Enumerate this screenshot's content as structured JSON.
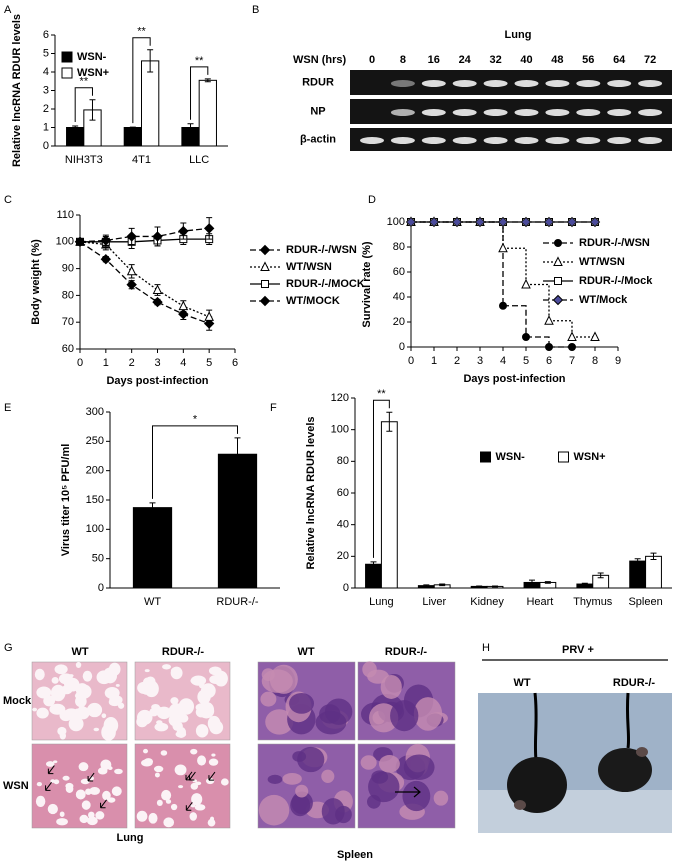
{
  "panel_labels": [
    "A",
    "B",
    "C",
    "D",
    "E",
    "F",
    "G",
    "H"
  ],
  "chart_data": [
    {
      "type": "bar",
      "ylabel": "Relative lncRNA RDUR levels",
      "categories": [
        "NIH3T3",
        "4T1",
        "LLC"
      ],
      "series": [
        {
          "name": "WSN-",
          "color": "#000000",
          "values": [
            1,
            1,
            1
          ],
          "errors": [
            0.08,
            0.02,
            0.2
          ]
        },
        {
          "name": "WSN+",
          "color": "#ffffff",
          "values": [
            1.95,
            4.6,
            3.55
          ],
          "errors": [
            0.55,
            0.6,
            0.08
          ]
        }
      ],
      "significance": [
        "**",
        "**",
        "**"
      ],
      "ylim": [
        0,
        6
      ],
      "yticks": [
        0,
        1,
        2,
        3,
        4,
        5,
        6
      ],
      "legend": "upper left"
    },
    {
      "type": "line",
      "ylabel": "Body weight (%)",
      "xlabel": "Days post-infection",
      "x": [
        0,
        1,
        2,
        3,
        4,
        5
      ],
      "series": [
        {
          "name": "RDUR-/-/WSN",
          "color": "#000000",
          "dash": "dashed",
          "marker": "diamond",
          "marker_fill": "filled",
          "values": [
            100,
            93.5,
            84,
            77.5,
            73,
            69.5
          ],
          "errors": [
            1,
            1,
            1.5,
            1,
            2,
            2.5
          ]
        },
        {
          "name": "WT/WSN",
          "color": "#000000",
          "dash": "dotted",
          "marker": "triangle",
          "marker_fill": "open",
          "values": [
            100,
            99,
            89,
            82,
            76,
            72
          ],
          "errors": [
            1,
            2,
            2.5,
            2,
            2,
            2.5
          ]
        },
        {
          "name": "RDUR-/-/MOCK",
          "color": "#000000",
          "dash": "solid",
          "marker": "square",
          "marker_fill": "open",
          "values": [
            100,
            100,
            100,
            100.5,
            101,
            101
          ],
          "errors": [
            1,
            2,
            2.5,
            2,
            2,
            2
          ]
        },
        {
          "name": "WT/MOCK",
          "color": "#000000",
          "dash": "dashed",
          "marker": "diamond",
          "marker_fill": "filled",
          "values": [
            100,
            100.5,
            102,
            102,
            104,
            105
          ],
          "errors": [
            1,
            2,
            3,
            3.5,
            3,
            4
          ]
        }
      ],
      "xlim": [
        0,
        6
      ],
      "xticks": [
        0,
        1,
        2,
        3,
        4,
        5,
        6
      ],
      "ylim": [
        60,
        110
      ],
      "yticks": [
        60,
        70,
        80,
        90,
        100,
        110
      ],
      "legend": "right"
    },
    {
      "type": "line",
      "step": true,
      "ylabel": "Survival rate (%)",
      "xlabel": "Days post-infection",
      "x": [
        0,
        1,
        2,
        3,
        4,
        5,
        6,
        7,
        8
      ],
      "series": [
        {
          "name": "RDUR-/-/WSN",
          "color": "#000000",
          "dash": "dashed",
          "marker": "circle",
          "marker_fill": "filled",
          "values": [
            100,
            100,
            100,
            100,
            33,
            8,
            0,
            0,
            null
          ]
        },
        {
          "name": "WT/WSN",
          "color": "#000000",
          "dash": "dotted",
          "marker": "triangle",
          "marker_fill": "open",
          "values": [
            100,
            100,
            100,
            100,
            79,
            50,
            21,
            8,
            8
          ]
        },
        {
          "name": "RDUR-/-/Mock",
          "color": "#000000",
          "dash": "solid",
          "marker": "square",
          "marker_fill": "open",
          "values": [
            100,
            100,
            100,
            100,
            100,
            100,
            100,
            100,
            100
          ]
        },
        {
          "name": "WT/Mock",
          "color": "#4b4b9b",
          "dash": "dashed",
          "marker": "diamond",
          "marker_fill": "filled",
          "values": [
            100,
            100,
            100,
            100,
            100,
            100,
            100,
            100,
            100
          ]
        }
      ],
      "xlim": [
        0,
        9
      ],
      "xticks": [
        0,
        1,
        2,
        3,
        4,
        5,
        6,
        7,
        8,
        9
      ],
      "ylim": [
        0,
        100
      ],
      "yticks": [
        0,
        20,
        40,
        60,
        80,
        100
      ],
      "legend": "upper right"
    },
    {
      "type": "bar",
      "ylabel": "Virus titer 10⁵ PFU/ml",
      "categories": [
        "WT",
        "RDUR-/-"
      ],
      "series": [
        {
          "color": "#000000",
          "values": [
            137,
            228
          ],
          "errors": [
            8,
            28
          ]
        }
      ],
      "significance": "*",
      "ylim": [
        0,
        300
      ],
      "yticks": [
        0,
        50,
        100,
        150,
        200,
        250,
        300
      ]
    },
    {
      "type": "bar",
      "ylabel": "Relative lncRNA RDUR levels",
      "categories": [
        "Lung",
        "Liver",
        "Kidney",
        "Heart",
        "Thymus",
        "Spleen"
      ],
      "series": [
        {
          "name": "WSN-",
          "color": "#000000",
          "values": [
            15,
            1.5,
            1,
            3.5,
            2.5,
            17
          ],
          "errors": [
            1.5,
            0.5,
            0.3,
            1.5,
            0.5,
            1.5
          ]
        },
        {
          "name": "WSN+",
          "color": "#ffffff",
          "values": [
            105,
            2,
            1,
            3.5,
            8,
            20
          ],
          "errors": [
            6,
            0.5,
            0.3,
            0.5,
            1.5,
            2
          ]
        }
      ],
      "significance": [
        "**",
        null,
        null,
        null,
        null,
        null
      ],
      "ylim": [
        0,
        120
      ],
      "yticks": [
        0,
        20,
        40,
        60,
        80,
        100,
        120
      ],
      "legend": "upper center"
    }
  ],
  "gel": {
    "title": "Lung",
    "axis_label": "WSN (hrs)",
    "lanes": [
      "0",
      "8",
      "16",
      "24",
      "32",
      "40",
      "48",
      "56",
      "64",
      "72"
    ],
    "rows": [
      "RDUR",
      "NP",
      "β-actin"
    ]
  },
  "histology": {
    "columns": [
      "WT",
      "RDUR-/-",
      "WT",
      "RDUR-/-"
    ],
    "rows": [
      "Mock",
      "WSN"
    ],
    "tissues": [
      "Lung",
      "Spleen"
    ]
  },
  "photo": {
    "title": "PRV +",
    "labels": [
      "WT",
      "RDUR-/-"
    ]
  }
}
